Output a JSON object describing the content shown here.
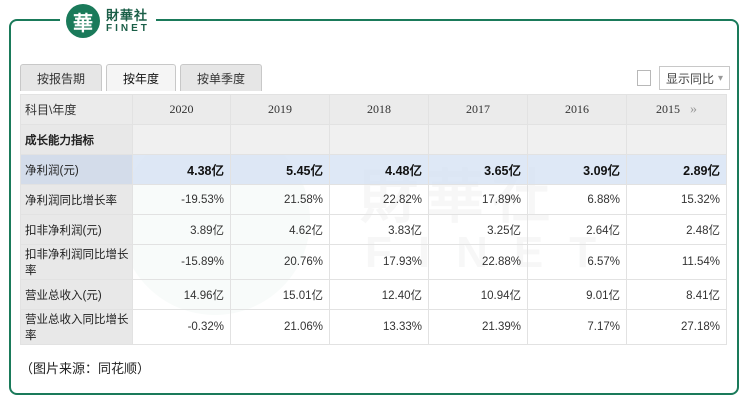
{
  "brand": {
    "name_cn": "財華社",
    "name_en": "FINET",
    "mark_char": "華"
  },
  "tabs": [
    {
      "label": "按报告期",
      "active": false
    },
    {
      "label": "按年度",
      "active": true
    },
    {
      "label": "按单季度",
      "active": false
    }
  ],
  "compare": {
    "label": "显示同比",
    "checked": false
  },
  "table": {
    "header_label": "科目\\年度",
    "years": [
      "2020",
      "2019",
      "2018",
      "2017",
      "2016",
      "2015"
    ],
    "more_icon": "double-chevron-right-icon",
    "section": "成长能力指标",
    "rows": [
      {
        "label": "净利润(元)",
        "values": [
          "4.38亿",
          "5.45亿",
          "4.48亿",
          "3.65亿",
          "3.09亿",
          "2.89亿"
        ],
        "highlight": true
      },
      {
        "label": "净利润同比增长率",
        "values": [
          "-19.53%",
          "21.58%",
          "22.82%",
          "17.89%",
          "6.88%",
          "15.32%"
        ]
      },
      {
        "label": "扣非净利润(元)",
        "values": [
          "3.89亿",
          "4.62亿",
          "3.83亿",
          "3.25亿",
          "2.64亿",
          "2.48亿"
        ]
      },
      {
        "label": "扣非净利润同比增长率",
        "values": [
          "-15.89%",
          "20.76%",
          "17.93%",
          "22.88%",
          "6.57%",
          "11.54%"
        ]
      },
      {
        "label": "营业总收入(元)",
        "values": [
          "14.96亿",
          "15.01亿",
          "12.40亿",
          "10.94亿",
          "9.01亿",
          "8.41亿"
        ]
      },
      {
        "label": "营业总收入同比增长率",
        "values": [
          "-0.32%",
          "21.06%",
          "13.33%",
          "21.39%",
          "7.17%",
          "27.18%"
        ]
      }
    ]
  },
  "source_note": "（图片来源：同花顺）",
  "colors": {
    "brand_green": "#1a7a5a",
    "highlight_row": "#dae6f5",
    "header_bg": "#ebebeb"
  }
}
